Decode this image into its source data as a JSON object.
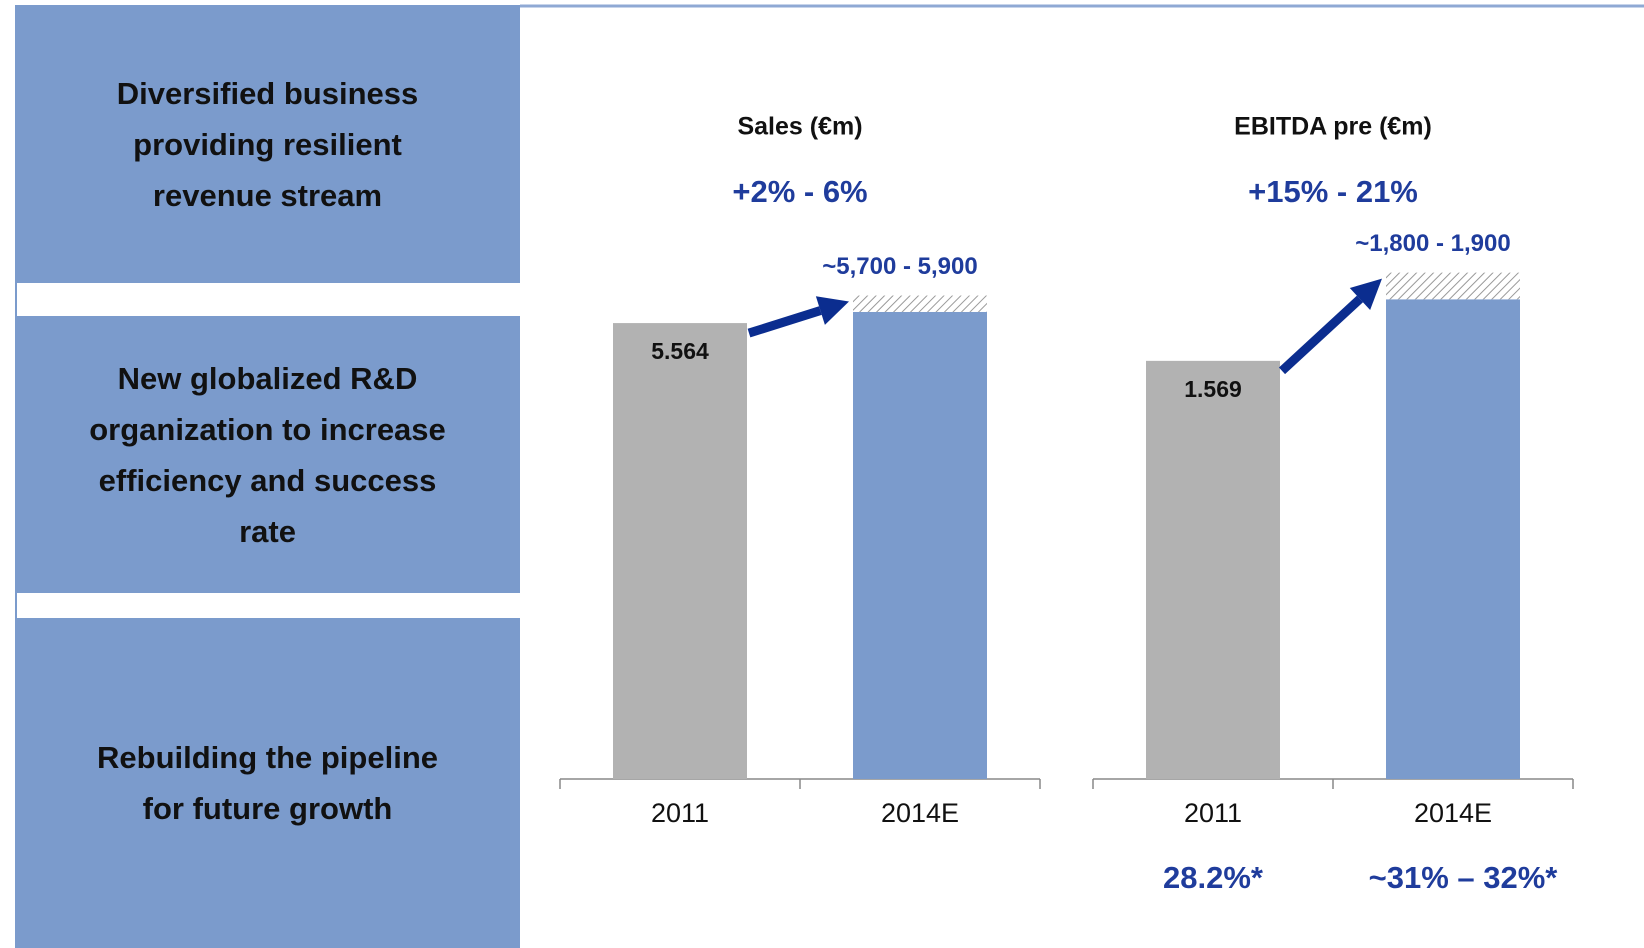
{
  "panels": [
    "Diversified business providing resilient revenue stream",
    "New globalized R&D organization to increase efficiency and success rate",
    "Rebuilding the pipeline for future growth"
  ],
  "chart_data": [
    {
      "type": "bar",
      "title": "Sales (€m)",
      "growth": "+2% - 6%",
      "categories": [
        "2011",
        "2014E"
      ],
      "values": [
        5564,
        null
      ],
      "value_labels": [
        "5.564",
        null
      ],
      "estimate": {
        "low": 5700,
        "high": 5900,
        "label": "~5,700 - 5,900"
      },
      "ylim": [
        0,
        6700
      ],
      "colors": {
        "actual": "#b2b2b2",
        "estimate": "#7b9bcc",
        "arrow": "#0b2d8f"
      }
    },
    {
      "type": "bar",
      "title": "EBITDA pre (€m)",
      "growth": "+15% - 21%",
      "categories": [
        "2011",
        "2014E"
      ],
      "values": [
        1569,
        null
      ],
      "value_labels": [
        "1.569",
        null
      ],
      "estimate": {
        "low": 1800,
        "high": 1900,
        "label": "~1,800 - 1,900"
      },
      "ylim": [
        0,
        2060
      ],
      "colors": {
        "actual": "#b2b2b2",
        "estimate": "#7b9bcc",
        "arrow": "#0b2d8f"
      },
      "margins": [
        "28.2%*",
        "~31% – 32%*"
      ]
    }
  ]
}
